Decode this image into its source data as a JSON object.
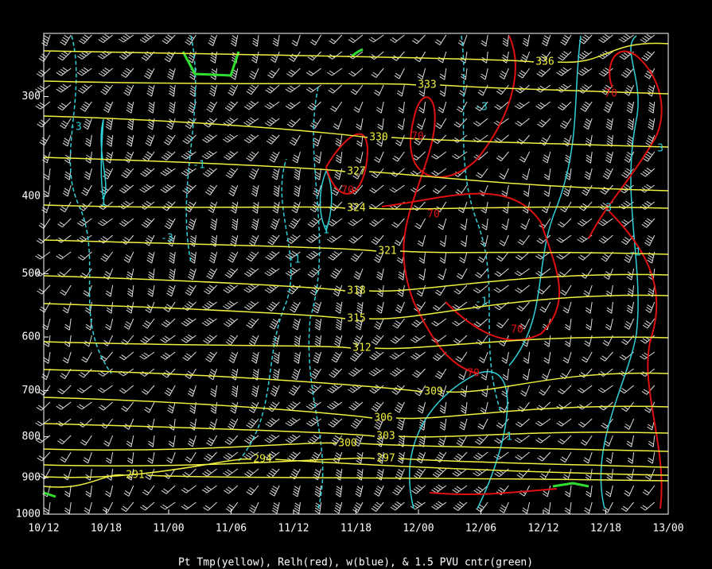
{
  "chart_data": {
    "type": "contour",
    "caption": "Pt Tmp(yellow), Relh(red), w(blue), & 1.5 PVU cntr(green)",
    "categories": [
      "10/12",
      "10/18",
      "11/00",
      "11/06",
      "11/12",
      "11/18",
      "12/00",
      "12/06",
      "12/12",
      "12/18",
      "13/00"
    ],
    "ylim": [
      1000,
      250
    ],
    "yticks": [
      300,
      400,
      500,
      600,
      700,
      800,
      900,
      1000
    ],
    "log_scale": true,
    "isentropes": {
      "color": "#f0f040",
      "values": [
        291,
        294,
        297,
        300,
        303,
        306,
        309,
        312,
        315,
        318,
        321,
        324,
        327,
        330,
        333,
        336
      ]
    },
    "relh": {
      "color": "#e01010",
      "values": [
        70
      ]
    },
    "w": {
      "color": "#30d0d8",
      "values": [
        -3,
        -1,
        1,
        3
      ]
    },
    "pvu": {
      "color": "#30e030"
    }
  }
}
